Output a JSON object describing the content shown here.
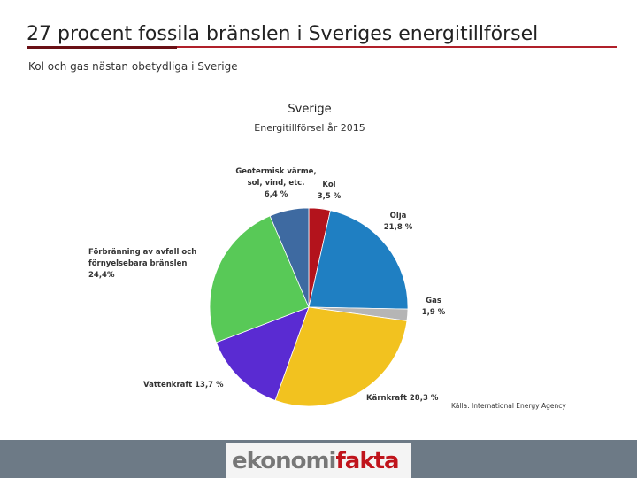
{
  "header": {
    "title": "27 procent fossila bränslen i Sveriges energitillförsel",
    "subtitle": "Kol och gas nästan obetydliga i Sverige"
  },
  "chart_data": {
    "type": "pie",
    "title": "Sverige",
    "subtitle": "Energitillförsel år 2015",
    "categories": [
      "Kol",
      "Olja",
      "Gas",
      "Kärnkraft",
      "Vattenkraft",
      "Förbränning av avfall och förnyelsebara bränslen",
      "Geotermisk värme, sol, vind, etc."
    ],
    "values": [
      3.5,
      21.8,
      1.9,
      28.3,
      13.7,
      24.4,
      6.4
    ],
    "value_labels": [
      "3,5 %",
      "21,8 %",
      "1,9 %",
      "28,3 %",
      "13,7 %",
      "24,4%",
      "6,4 %"
    ],
    "colors": [
      "#b3131c",
      "#1f7fc2",
      "#b5b5b5",
      "#f2c21f",
      "#5a2bd2",
      "#58c957",
      "#3e6aa1"
    ]
  },
  "source": "Källa: International Energy Agency",
  "logo": {
    "part1": "ekonomi",
    "part2": "fakta"
  }
}
